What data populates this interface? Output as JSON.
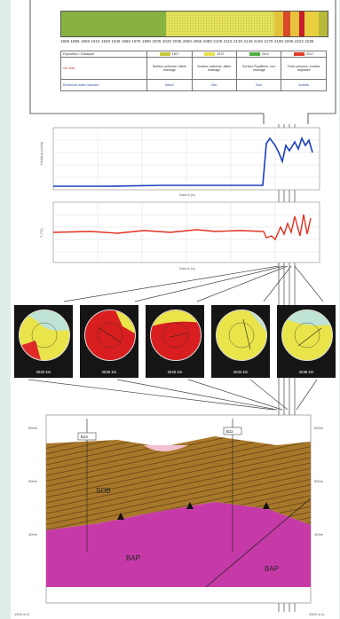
{
  "timeline": {
    "years": [
      "1868",
      "1885",
      "1900",
      "1915",
      "1930",
      "1945",
      "1960",
      "1975",
      "1990",
      "2005",
      "2020",
      "2035",
      "2050",
      "2065",
      "2080",
      "2100",
      "2115",
      "2130",
      "2145",
      "2160",
      "2175",
      "2190",
      "2205",
      "2222",
      "2235"
    ]
  },
  "legend": {
    "header": "Exposition / Classique",
    "row_labels": [
      "Sol lisse",
      "Enhanced water intrusion"
    ],
    "columns": [
      {
        "years": "1817",
        "desc": "Surface uniforme, faible drainage",
        "status": "Début"
      },
      {
        "years": "1972",
        "desc": "Surface uniforme, faible drainage",
        "status": "Non"
      },
      {
        "years": "2014",
        "desc": "Surface Équilibrée, bon drainage",
        "status": "Non"
      },
      {
        "years": "2017",
        "desc": "Forte pression, surface dégradée",
        "status": "Activité"
      }
    ],
    "colors": [
      "#c9c93a",
      "#e8e04a",
      "#4fae3f",
      "#e23b2c"
    ]
  },
  "chart_top": {
    "ylabel": "Heating (cm/a)",
    "xlabel": "Datum (a)"
  },
  "chart_bottom": {
    "ylabel": "T (°C)",
    "xlabel": "Datum (a)"
  },
  "discs": [
    {
      "label": "2520 km"
    },
    {
      "label": "2525 km"
    },
    {
      "label": "2528 km"
    },
    {
      "label": "2533 km"
    },
    {
      "label": "2538 km"
    }
  ],
  "cross_section": {
    "upper_unit": "SOB",
    "lower_unit_left": "BAP",
    "lower_unit_right": "BAP",
    "marker_left": "B14",
    "marker_right": "B11",
    "left_depths": [
      "600m",
      "500m",
      "400m"
    ],
    "right_depths": [
      "600m",
      "500m",
      "400m"
    ],
    "footer_left": "1500 m A.",
    "footer_right": "2500 m A."
  }
}
